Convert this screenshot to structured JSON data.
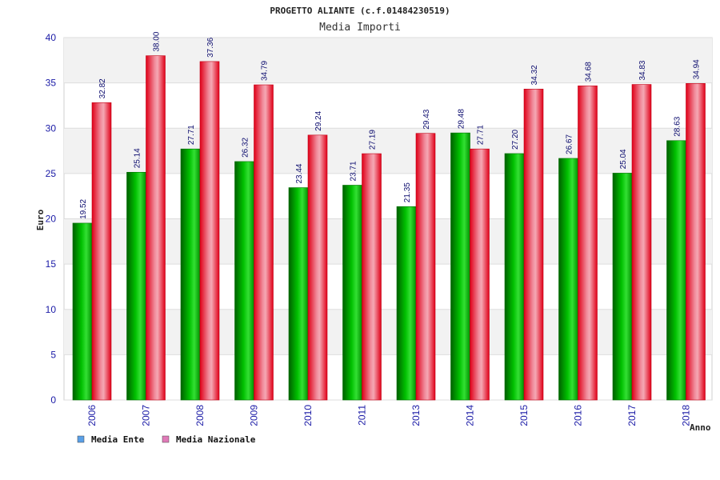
{
  "chart_data": {
    "type": "bar",
    "title": "PROGETTO ALIANTE (c.f.01484230519)",
    "subtitle": "Media Importi",
    "xlabel": "Anno",
    "ylabel": "Euro",
    "ylim": [
      0,
      40
    ],
    "yticks": [
      "0",
      "5",
      "10",
      "15",
      "20",
      "25",
      "30",
      "35",
      "40"
    ],
    "grid": true,
    "legend_position": "bottom-left",
    "categories": [
      "2006",
      "2007",
      "2008",
      "2009",
      "2010",
      "2011",
      "2013",
      "2014",
      "2015",
      "2016",
      "2017",
      "2018"
    ],
    "series": [
      {
        "name": "Media Ente",
        "color": "#00a000",
        "legend_color": "#5aa0e8",
        "values": [
          19.52,
          25.14,
          27.71,
          26.32,
          23.44,
          23.71,
          21.35,
          29.48,
          27.2,
          26.67,
          25.04,
          28.63
        ],
        "labels": [
          "19.52",
          "25.14",
          "27.71",
          "26.32",
          "23.44",
          "23.71",
          "21.35",
          "29.48",
          "27.20",
          "26.67",
          "25.04",
          "28.63"
        ]
      },
      {
        "name": "Media Nazionale",
        "color": "#e8001c",
        "legend_color": "#e07ab8",
        "values": [
          32.82,
          38.0,
          37.36,
          34.79,
          29.24,
          27.19,
          29.43,
          27.71,
          34.32,
          34.68,
          34.83,
          34.94
        ],
        "labels": [
          "32.82",
          "38.00",
          "37.36",
          "34.79",
          "29.24",
          "27.19",
          "29.43",
          "27.71",
          "34.32",
          "34.68",
          "34.83",
          "34.94"
        ]
      }
    ]
  }
}
